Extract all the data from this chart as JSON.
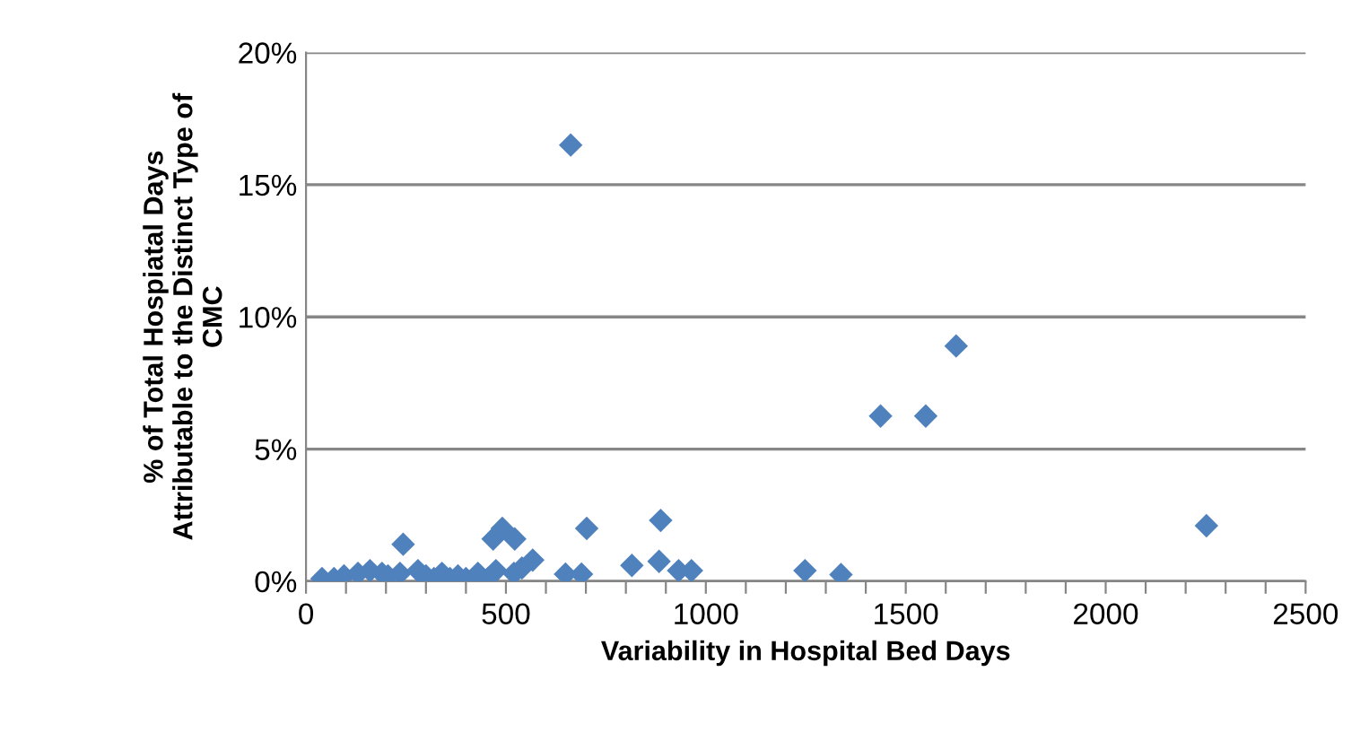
{
  "chart_data": {
    "type": "scatter",
    "xlabel": "Variability in Hospital Bed Days",
    "ylabel": "% of Total Hospiatal Days\nAttributable to the Distinct Type of\nCMC",
    "marker": "diamond",
    "grid": "y",
    "series": [
      {
        "color": "#4f81bd",
        "x": [
          40,
          70,
          95,
          130,
          160,
          190,
          205,
          235,
          280,
          300,
          320,
          340,
          360,
          380,
          400,
          430,
          455,
          475,
          520,
          540,
          243,
          468,
          491,
          522,
          567,
          649,
          689,
          702,
          815,
          883,
          887,
          932,
          964,
          1248,
          1338,
          2252,
          1437,
          1550,
          1626,
          662
        ],
        "values": [
          0.1,
          0.1,
          0.2,
          0.3,
          0.4,
          0.3,
          0.2,
          0.3,
          0.4,
          0.2,
          0.1,
          0.3,
          0.1,
          0.2,
          0.1,
          0.3,
          0.1,
          0.4,
          0.3,
          0.5,
          1.4,
          1.6,
          2.0,
          1.6,
          0.8,
          0.27,
          0.27,
          2.0,
          0.6,
          0.75,
          2.3,
          0.4,
          0.4,
          0.4,
          0.25,
          2.1,
          6.25,
          6.25,
          8.9,
          16.5
        ]
      }
    ],
    "xlim": [
      0,
      2500
    ],
    "xticks": [
      0,
      {
        "value": 100,
        "label": null
      },
      {
        "value": 200,
        "label": null
      },
      {
        "value": 300,
        "label": null
      },
      {
        "value": 400,
        "label": null
      },
      500,
      {
        "value": 600,
        "label": null
      },
      {
        "value": 700,
        "label": null
      },
      {
        "value": 800,
        "label": null
      },
      {
        "value": 900,
        "label": null
      },
      1000,
      {
        "value": 1100,
        "label": null
      },
      {
        "value": 1200,
        "label": null
      },
      {
        "value": 1300,
        "label": null
      },
      {
        "value": 1400,
        "label": null
      },
      1500,
      {
        "value": 1600,
        "label": null
      },
      {
        "value": 1700,
        "label": null
      },
      {
        "value": 1800,
        "label": null
      },
      {
        "value": 1900,
        "label": null
      },
      2000,
      {
        "value": 2100,
        "label": null
      },
      {
        "value": 2200,
        "label": null
      },
      {
        "value": 2300,
        "label": null
      },
      {
        "value": 2400,
        "label": null
      },
      2500
    ],
    "ylim": [
      0,
      20
    ],
    "yticks": [
      {
        "value": 0,
        "label": "0%"
      },
      {
        "value": 5,
        "label": "5%"
      },
      {
        "value": 10,
        "label": "10%"
      },
      {
        "value": 15,
        "label": "15%"
      },
      {
        "value": 20,
        "label": "20%"
      }
    ]
  }
}
